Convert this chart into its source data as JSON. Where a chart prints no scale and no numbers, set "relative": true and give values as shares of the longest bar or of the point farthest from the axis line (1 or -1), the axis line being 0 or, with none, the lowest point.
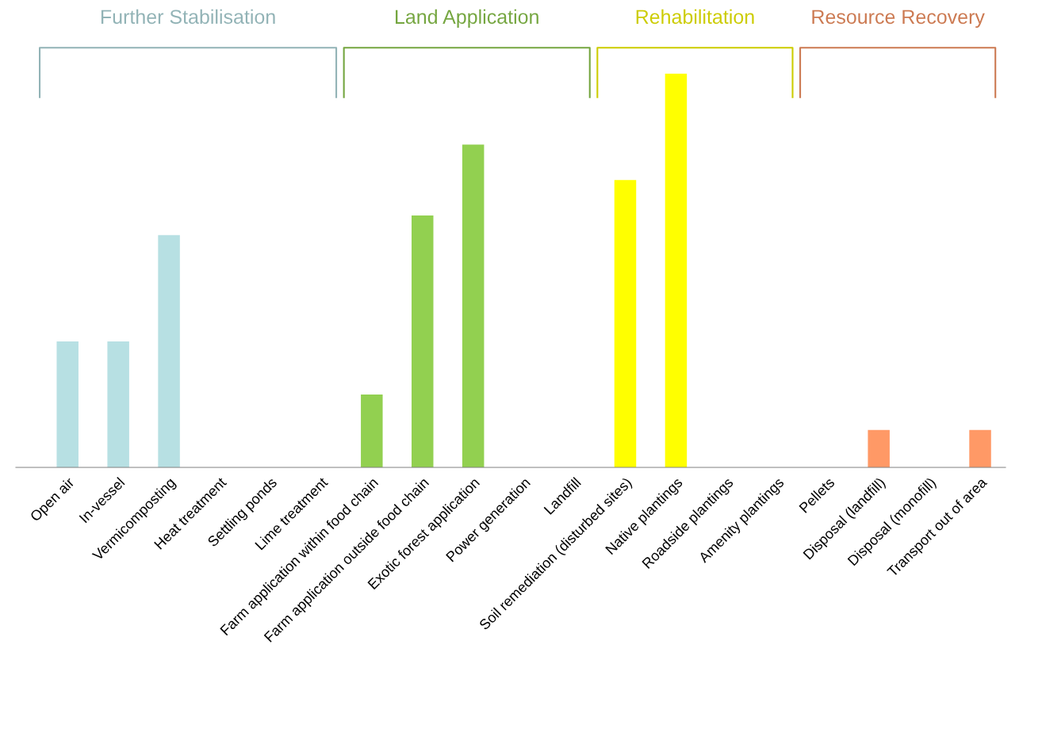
{
  "chart_data": {
    "type": "bar",
    "relative": true,
    "categories": [
      "Open air",
      "In-vessel",
      "Vermicomposting",
      "Heat treatment",
      "Settling ponds",
      "Lime treatment",
      "Farm application within food chain",
      "Farm application outside food chain",
      "Exotic forest application",
      "Power generation",
      "Landfill",
      "Soil remediation (disturbed sites)",
      "Native plantings",
      "Roadside plantings",
      "Amenity plantings",
      "Pellets",
      "Disposal (landfill)",
      "Disposal (monofill)",
      "Transport out of area"
    ],
    "values": [
      0.32,
      0.32,
      0.59,
      0,
      0,
      0,
      0.185,
      0.64,
      0.82,
      0,
      0,
      0.73,
      1,
      0,
      0,
      0,
      0.095,
      0,
      0.095
    ],
    "colors": [
      "#b7e0e3",
      "#b7e0e3",
      "#b7e0e3",
      "#b7e0e3",
      "#b7e0e3",
      "#b7e0e3",
      "#92d050",
      "#92d050",
      "#92d050",
      "#92d050",
      "#92d050",
      "#ffff00",
      "#ffff00",
      "#ffff00",
      "#ffff00",
      "#ff9966",
      "#ff9966",
      "#ff9966",
      "#ff9966"
    ],
    "annotations": [
      "Further Stabilisation",
      "Land Application",
      "Rehabilitation",
      "Resource Recovery"
    ],
    "grid": false,
    "legend": false
  }
}
